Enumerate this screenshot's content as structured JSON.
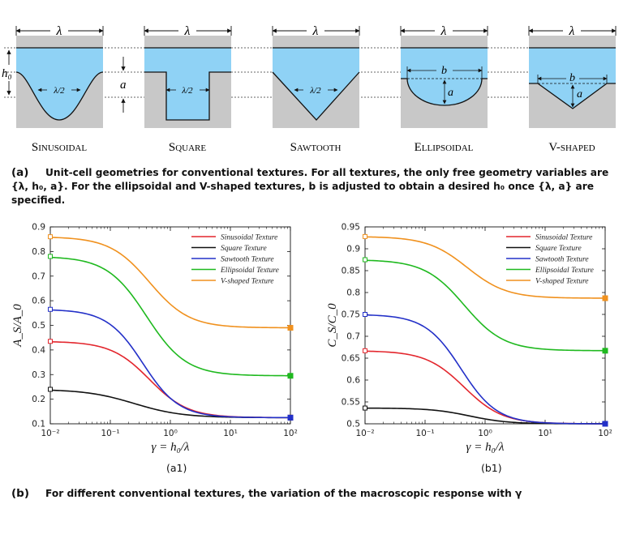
{
  "geometry_panel": {
    "wavelength_symbol": "λ",
    "half_wavelength_symbol": "λ/2",
    "height_symbol": "h₀",
    "depth_symbol": "a",
    "width_symbol": "b",
    "textures": [
      "Sinusoidal",
      "Square",
      "Sawtooth",
      "Ellipsoidal",
      "V-shaped"
    ],
    "fluid_color": "#8fd2f5",
    "solid_color": "#c8c8c8"
  },
  "captions": {
    "a_letter": "(a)",
    "a_text": "Unit-cell geometries for conventional textures. For all textures, the only free geometry variables are {λ, h₀, a}. For the ellipsoidal and V-shaped textures, b is adjusted to obtain a desired h₀ once {λ, a} are specified.",
    "b_letter": "(b)",
    "b_text": "For different conventional textures, the variation of the macroscopic response with γ"
  },
  "subfigure_labels": {
    "a1": "(a1)",
    "b1": "(b1)"
  },
  "chart_data": [
    {
      "type": "line",
      "xscale": "log",
      "xlim": [
        0.01,
        100
      ],
      "ylim": [
        0.1,
        0.9
      ],
      "xticks": [
        "10⁻²",
        "10⁻¹",
        "10⁰",
        "10¹",
        "10²"
      ],
      "yticks": [
        "0.1",
        "0.2",
        "0.3",
        "0.4",
        "0.5",
        "0.6",
        "0.7",
        "0.8",
        "0.9"
      ],
      "xlabel": "γ = h₀/λ",
      "ylabel": "A_S/A_0",
      "legend_position": "top-right",
      "series": [
        {
          "name": "Sinusoidal Texture",
          "color": "#e3262d",
          "start": 0.435,
          "end": 0.125,
          "center": 0.45,
          "width": 0.32
        },
        {
          "name": "Square Texture",
          "color": "#111111",
          "start": 0.24,
          "end": 0.125,
          "center": 0.25,
          "width": 0.4
        },
        {
          "name": "Sawtooth Texture",
          "color": "#2330c8",
          "start": 0.565,
          "end": 0.125,
          "center": 0.35,
          "width": 0.3
        },
        {
          "name": "Ellipsoidal Texture",
          "color": "#1fb91f",
          "start": 0.78,
          "end": 0.295,
          "center": 0.4,
          "width": 0.33
        },
        {
          "name": "V-shaped Texture",
          "color": "#f0911e",
          "start": 0.86,
          "end": 0.49,
          "center": 0.45,
          "width": 0.33
        }
      ]
    },
    {
      "type": "line",
      "xscale": "log",
      "xlim": [
        0.01,
        100
      ],
      "ylim": [
        0.5,
        0.95
      ],
      "xticks": [
        "10⁻²",
        "10⁻¹",
        "10⁰",
        "10¹",
        "10²"
      ],
      "yticks": [
        "0.5",
        "0.55",
        "0.6",
        "0.65",
        "0.7",
        "0.75",
        "0.8",
        "0.85",
        "0.9",
        "0.95"
      ],
      "xlabel": "γ = h₀/λ",
      "ylabel": "C_S/C_0",
      "legend_position": "top-right",
      "series": [
        {
          "name": "Sinusoidal Texture",
          "color": "#e3262d",
          "start": 0.667,
          "end": 0.5,
          "center": 0.45,
          "width": 0.32
        },
        {
          "name": "Square Texture",
          "color": "#111111",
          "start": 0.536,
          "end": 0.5,
          "center": 0.55,
          "width": 0.32
        },
        {
          "name": "Sawtooth Texture",
          "color": "#2330c8",
          "start": 0.75,
          "end": 0.5,
          "center": 0.4,
          "width": 0.3
        },
        {
          "name": "Ellipsoidal Texture",
          "color": "#1fb91f",
          "start": 0.875,
          "end": 0.667,
          "center": 0.45,
          "width": 0.33
        },
        {
          "name": "V-shaped Texture",
          "color": "#f0911e",
          "start": 0.928,
          "end": 0.787,
          "center": 0.5,
          "width": 0.33
        }
      ]
    }
  ]
}
